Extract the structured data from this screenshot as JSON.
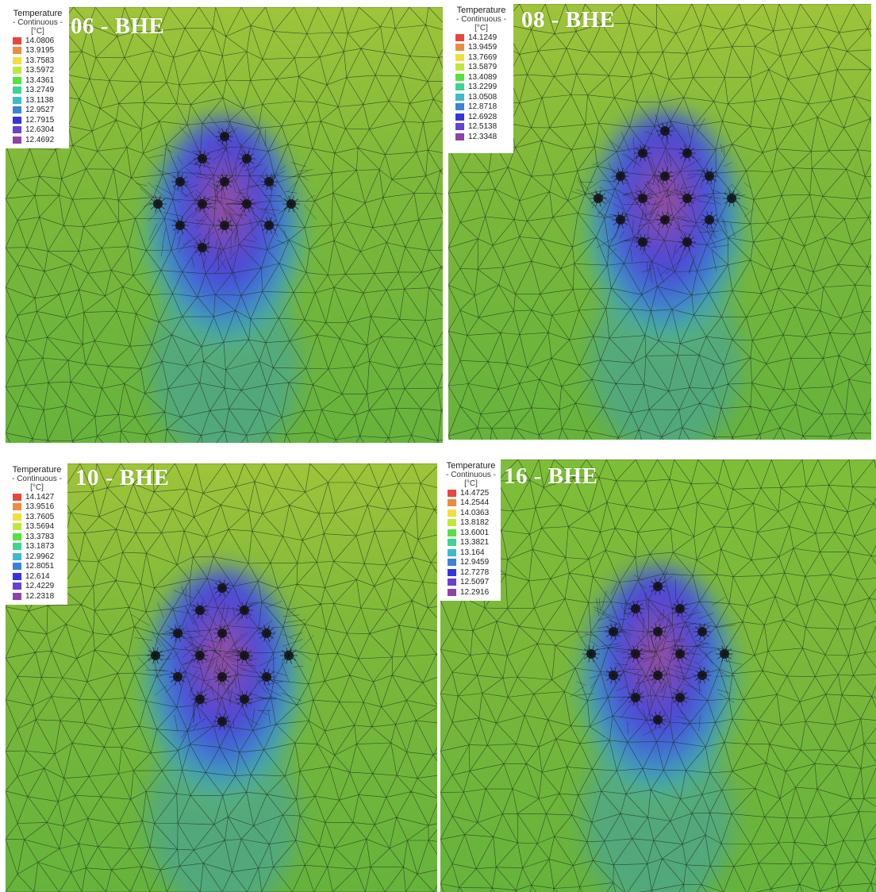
{
  "legend_colors": [
    "#e8453c",
    "#ee8c3e",
    "#f1df3f",
    "#bfe83c",
    "#55e23a",
    "#3ad592",
    "#3cbad0",
    "#3b82da",
    "#3434de",
    "#6740d4",
    "#8f42a8"
  ],
  "panels": [
    {
      "title": "06 - BHE",
      "legend": {
        "title": "Temperature",
        "subtitle": "- Continuous -",
        "unit": "[°C]",
        "values": [
          "14.0806",
          "13.9195",
          "13.7583",
          "13.5972",
          "13.4361",
          "13.2749",
          "13.1138",
          "12.9527",
          "12.7915",
          "12.6304",
          "12.4692"
        ]
      }
    },
    {
      "title": "08 - BHE",
      "legend": {
        "title": "Temperature",
        "subtitle": "- Continuous -",
        "unit": "[°C]",
        "values": [
          "14.1249",
          "13.9459",
          "13.7669",
          "13.5879",
          "13.4089",
          "13.2299",
          "13.0508",
          "12.8718",
          "12.6928",
          "12.5138",
          "12.3348"
        ]
      }
    },
    {
      "title": "10 - BHE",
      "legend": {
        "title": "Temperature",
        "subtitle": "- Continuous -",
        "unit": "[°C]",
        "values": [
          "14.1427",
          "13.9516",
          "13.7605",
          "13.5694",
          "13.3783",
          "13.1873",
          "12.9962",
          "12.8051",
          "12.614",
          "12.4229",
          "12.2318"
        ]
      }
    },
    {
      "title": "16 - BHE",
      "legend": {
        "title": "Temperature",
        "subtitle": "- Continuous -",
        "unit": "[°C]",
        "values": [
          "14.4725",
          "14.2544",
          "14.0363",
          "13.8182",
          "13.6001",
          "13.3821",
          "13.164",
          "12.9459",
          "12.7278",
          "12.5097",
          "12.2916"
        ]
      }
    }
  ]
}
